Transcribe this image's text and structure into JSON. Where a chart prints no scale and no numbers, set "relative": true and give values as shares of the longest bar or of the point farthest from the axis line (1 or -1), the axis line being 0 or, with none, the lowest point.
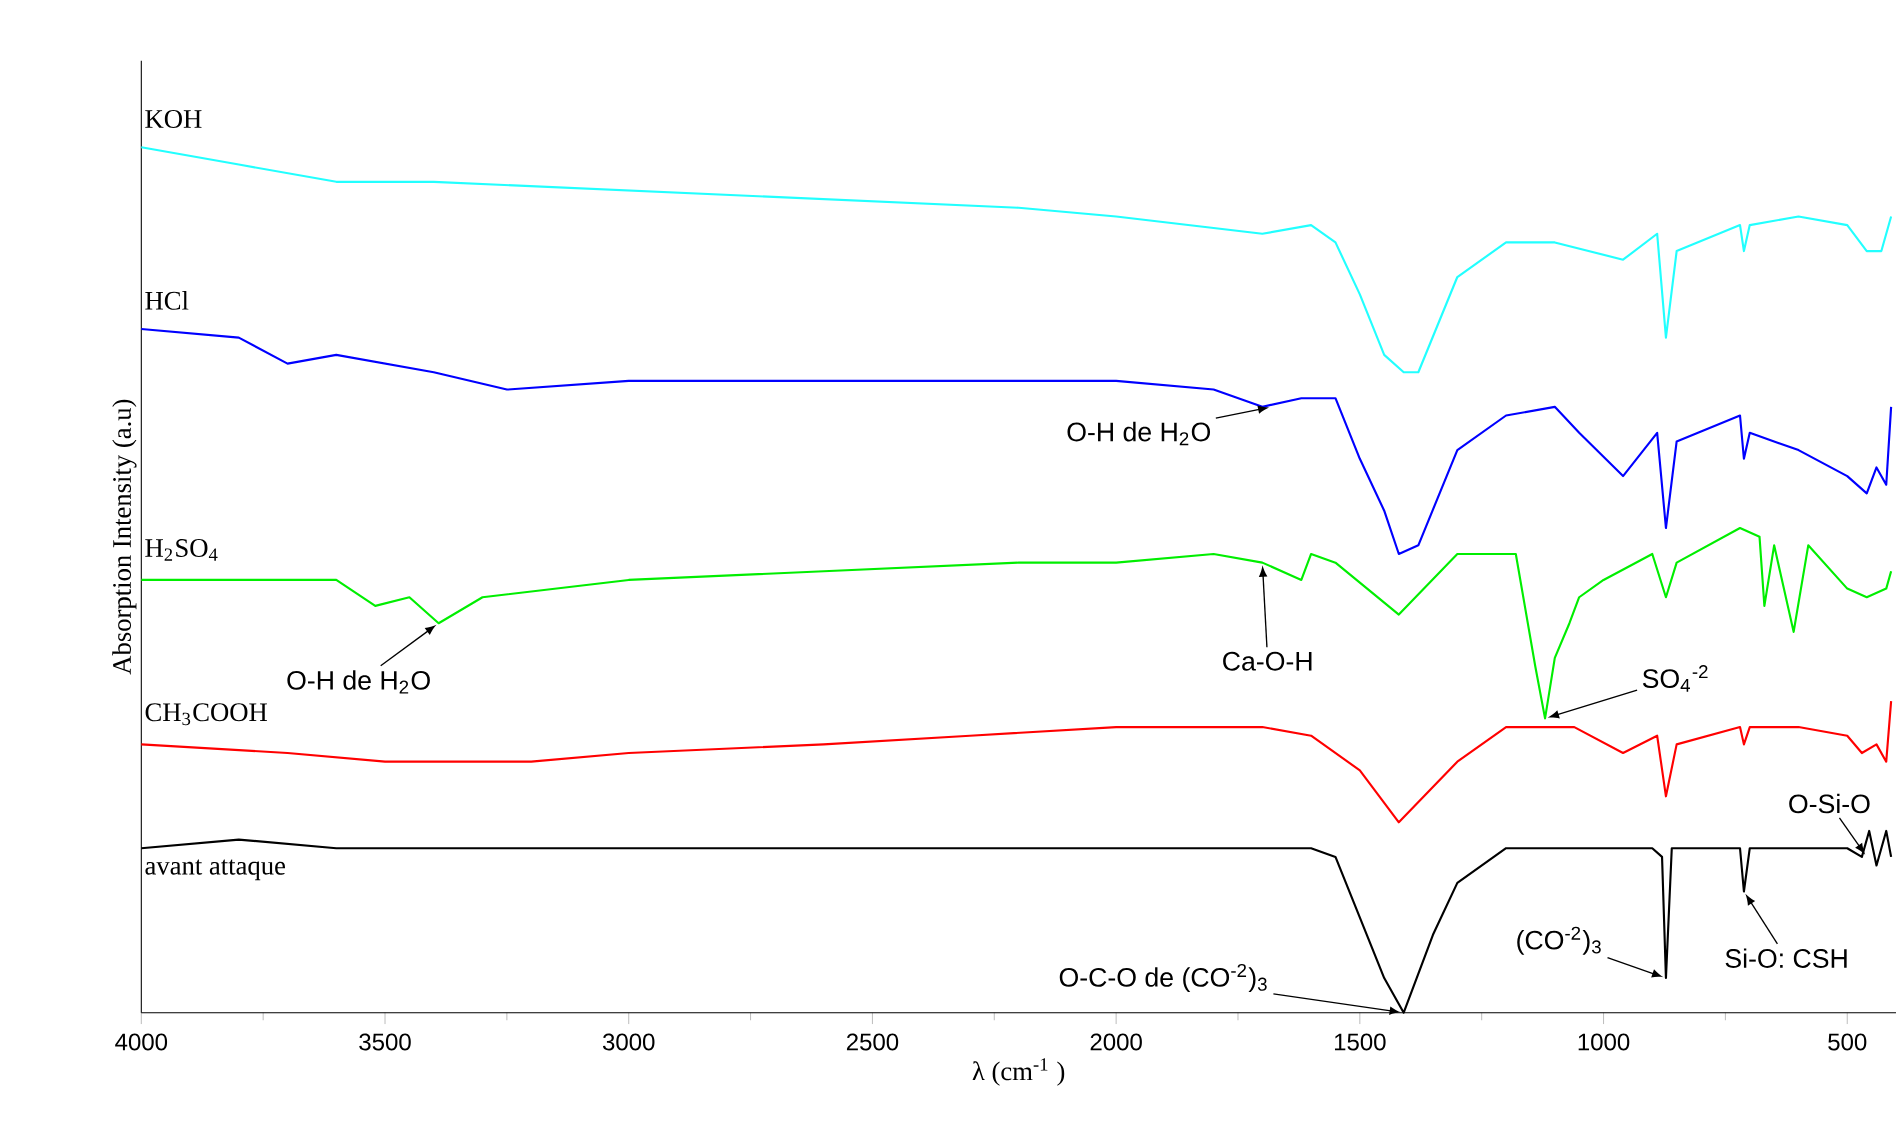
{
  "chart_data": {
    "type": "line",
    "relative": true,
    "xlabel": "λ (cm$^{-1}$ )",
    "ylabel": "Absorption Intensity (a.u)",
    "xlim": [
      4000,
      400
    ],
    "xticks": [
      4000,
      3500,
      3000,
      2500,
      2000,
      1500,
      1000,
      500
    ],
    "grid": false,
    "legend": false,
    "marker": "none",
    "line_style": "solid",
    "series": [
      {
        "name": "KOH",
        "color": "#22ffff",
        "x": [
          4000,
          3800,
          3600,
          3400,
          3000,
          2600,
          2200,
          2000,
          1700,
          1600,
          1550,
          1500,
          1450,
          1410,
          1380,
          1300,
          1200,
          1100,
          960,
          890,
          872,
          850,
          720,
          712,
          700,
          600,
          500,
          460,
          430,
          410
        ],
        "values": [
          1.0,
          0.98,
          0.96,
          0.96,
          0.95,
          0.94,
          0.93,
          0.92,
          0.9,
          0.91,
          0.89,
          0.83,
          0.76,
          0.74,
          0.74,
          0.85,
          0.89,
          0.89,
          0.87,
          0.9,
          0.78,
          0.88,
          0.91,
          0.88,
          0.91,
          0.92,
          0.91,
          0.88,
          0.88,
          0.92
        ]
      },
      {
        "name": "HCl",
        "color": "#0000ff",
        "x": [
          4000,
          3800,
          3700,
          3600,
          3400,
          3250,
          3000,
          2600,
          2200,
          2000,
          1800,
          1700,
          1620,
          1550,
          1500,
          1450,
          1420,
          1380,
          1300,
          1200,
          1100,
          1050,
          960,
          890,
          872,
          850,
          720,
          712,
          700,
          600,
          500,
          460,
          440,
          420,
          410
        ],
        "values": [
          0.79,
          0.78,
          0.75,
          0.76,
          0.74,
          0.72,
          0.73,
          0.73,
          0.73,
          0.73,
          0.72,
          0.7,
          0.71,
          0.71,
          0.64,
          0.58,
          0.53,
          0.54,
          0.65,
          0.69,
          0.7,
          0.67,
          0.62,
          0.67,
          0.56,
          0.66,
          0.69,
          0.64,
          0.67,
          0.65,
          0.62,
          0.6,
          0.63,
          0.61,
          0.7
        ]
      },
      {
        "name": "H$_{2}$SO$_{4}$",
        "color": "#00ee00",
        "x": [
          4000,
          3700,
          3600,
          3520,
          3450,
          3390,
          3300,
          3000,
          2600,
          2200,
          2000,
          1800,
          1700,
          1620,
          1600,
          1550,
          1420,
          1300,
          1200,
          1180,
          1140,
          1120,
          1100,
          1070,
          1050,
          1000,
          900,
          872,
          850,
          720,
          680,
          670,
          650,
          610,
          580,
          500,
          460,
          420,
          410
        ],
        "values": [
          0.5,
          0.5,
          0.5,
          0.47,
          0.48,
          0.45,
          0.48,
          0.5,
          0.51,
          0.52,
          0.52,
          0.53,
          0.52,
          0.5,
          0.53,
          0.52,
          0.46,
          0.53,
          0.53,
          0.53,
          0.4,
          0.34,
          0.41,
          0.45,
          0.48,
          0.5,
          0.53,
          0.48,
          0.52,
          0.56,
          0.55,
          0.47,
          0.54,
          0.44,
          0.54,
          0.49,
          0.48,
          0.49,
          0.51
        ]
      },
      {
        "name": "CH$_{3}$COOH",
        "color": "#ff0000",
        "x": [
          4000,
          3700,
          3500,
          3400,
          3200,
          3000,
          2600,
          2300,
          2000,
          1700,
          1600,
          1500,
          1420,
          1300,
          1200,
          1120,
          1060,
          960,
          890,
          872,
          850,
          720,
          712,
          700,
          600,
          500,
          470,
          440,
          420,
          410
        ],
        "values": [
          0.31,
          0.3,
          0.29,
          0.29,
          0.29,
          0.3,
          0.31,
          0.32,
          0.33,
          0.33,
          0.32,
          0.28,
          0.22,
          0.29,
          0.33,
          0.33,
          0.33,
          0.3,
          0.32,
          0.25,
          0.31,
          0.33,
          0.31,
          0.33,
          0.33,
          0.32,
          0.3,
          0.31,
          0.29,
          0.36
        ]
      },
      {
        "name": "avant attaque",
        "color": "#000000",
        "x": [
          4000,
          3800,
          3600,
          3000,
          2000,
          1600,
          1550,
          1500,
          1450,
          1410,
          1350,
          1300,
          1200,
          900,
          880,
          872,
          860,
          720,
          712,
          700,
          500,
          470,
          455,
          440,
          420,
          410
        ],
        "values": [
          0.19,
          0.2,
          0.19,
          0.19,
          0.19,
          0.19,
          0.18,
          0.11,
          0.04,
          0.0,
          0.09,
          0.15,
          0.19,
          0.19,
          0.18,
          0.04,
          0.19,
          0.19,
          0.14,
          0.19,
          0.19,
          0.18,
          0.21,
          0.17,
          0.21,
          0.18
        ]
      }
    ],
    "annotations": [
      {
        "text": "O-H de H$_{2}$O",
        "x": 1680,
        "y": 0.7
      },
      {
        "text": "O-H de H$_{2}$O",
        "x": 3390,
        "y": 0.45
      },
      {
        "text": "Ca-O-H",
        "x": 1700,
        "y": 0.52
      },
      {
        "text": "SO$_{4}$$^{-2}$",
        "x": 1120,
        "y": 0.34
      },
      {
        "text": "O-Si-O",
        "x": 460,
        "y": 0.18
      },
      {
        "text": "Si-O: CSH",
        "x": 712,
        "y": 0.14
      },
      {
        "text": "(CO$^{-2}$)$_{3}$",
        "x": 872,
        "y": 0.04
      },
      {
        "text": "O-C-O de (CO$^{-2}$)$_{3}$",
        "x": 1410,
        "y": 0.0
      }
    ]
  }
}
